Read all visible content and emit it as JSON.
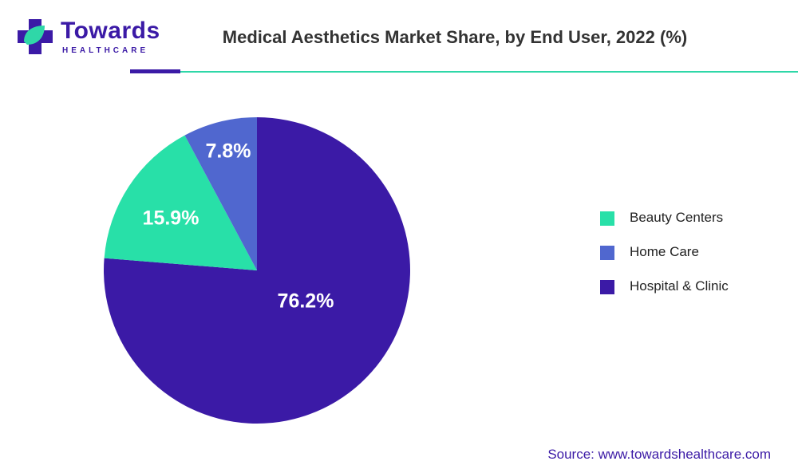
{
  "brand": {
    "name": "Towards",
    "sub": "HEALTHCARE",
    "colors": {
      "primary": "#3b1aa6",
      "accent": "#2fd7a8"
    }
  },
  "header": {
    "title": "Medical Aesthetics Market Share, by End User, 2022 (%)"
  },
  "chart_data": {
    "type": "pie",
    "title": "Medical Aesthetics Market Share, by End User, 2022 (%)",
    "categories": [
      "Hospital & Clinic",
      "Beauty Centers",
      "Home Care"
    ],
    "values": [
      76.2,
      15.9,
      7.8
    ],
    "labels": [
      "76.2%",
      "15.9%",
      "7.8%"
    ],
    "colors": [
      "#3b1aa6",
      "#28e0a8",
      "#5067cf"
    ],
    "legend": {
      "position": "right",
      "items": [
        {
          "label": "Beauty Centers",
          "color": "#28e0a8"
        },
        {
          "label": "Home Care",
          "color": "#5067cf"
        },
        {
          "label": "Hospital & Clinic",
          "color": "#3b1aa6"
        }
      ]
    }
  },
  "footer": {
    "source": "Source: www.towardshealthcare.com"
  }
}
